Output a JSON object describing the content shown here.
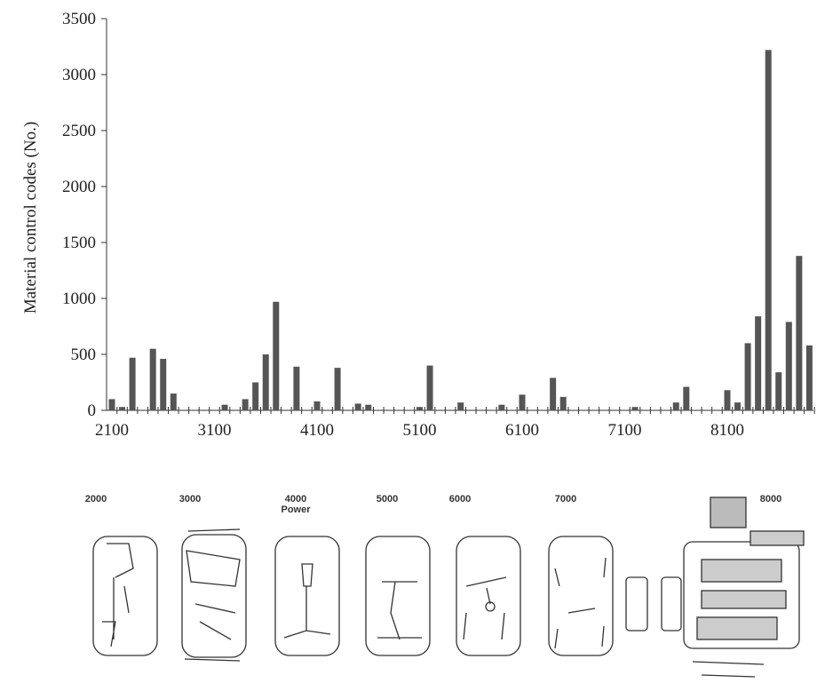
{
  "chart_data": {
    "type": "bar",
    "y_axis_label": "Material control codes (No.)",
    "categories": [
      "2100",
      null,
      null,
      null,
      null,
      null,
      null,
      null,
      null,
      null,
      "3100",
      null,
      null,
      null,
      null,
      null,
      null,
      null,
      null,
      null,
      "4100",
      null,
      null,
      null,
      null,
      null,
      null,
      null,
      null,
      null,
      "5100",
      null,
      null,
      null,
      null,
      null,
      null,
      null,
      null,
      null,
      "6100",
      null,
      null,
      null,
      null,
      null,
      null,
      null,
      null,
      null,
      "7100",
      null,
      null,
      null,
      null,
      null,
      null,
      null,
      null,
      null,
      "8100",
      null,
      null,
      null,
      null,
      null,
      null,
      null,
      null
    ],
    "values": [
      100,
      30,
      470,
      0,
      550,
      460,
      150,
      0,
      0,
      0,
      0,
      50,
      0,
      100,
      250,
      500,
      970,
      0,
      390,
      0,
      80,
      0,
      380,
      0,
      60,
      50,
      0,
      0,
      0,
      0,
      30,
      400,
      0,
      0,
      70,
      0,
      0,
      0,
      50,
      0,
      140,
      0,
      0,
      290,
      120,
      0,
      0,
      0,
      0,
      0,
      0,
      30,
      0,
      0,
      0,
      70,
      210,
      0,
      0,
      0,
      180,
      70,
      600,
      840,
      3220,
      340,
      790,
      1380,
      580
    ],
    "color": "#555555",
    "ylim": [
      0,
      3500
    ],
    "yticks": [
      0,
      500,
      1000,
      1500,
      2000,
      2500,
      3000,
      3500
    ],
    "power_labels": [
      "2000",
      "3000",
      "4000",
      "5000",
      "6000",
      "7000",
      "8000"
    ],
    "power_axis_label": "Power"
  }
}
